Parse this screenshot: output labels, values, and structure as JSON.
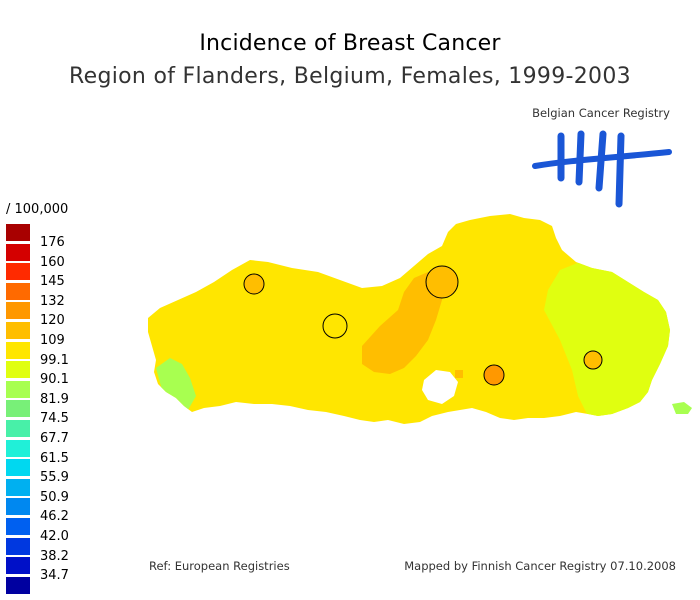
{
  "title": "Incidence of Breast Cancer",
  "subtitle": "Region of Flanders, Belgium, Females, 1999-2003",
  "logo": {
    "text": "Belgian Cancer Registry",
    "color": "#1a56d6"
  },
  "legend": {
    "unit": "/ 100,000",
    "items": [
      {
        "label": "176",
        "color": "#a80000"
      },
      {
        "label": "160",
        "color": "#d40000"
      },
      {
        "label": "145",
        "color": "#ff2a00"
      },
      {
        "label": "132",
        "color": "#ff6a00"
      },
      {
        "label": "120",
        "color": "#ff9800"
      },
      {
        "label": "109",
        "color": "#ffbe00"
      },
      {
        "label": "99.1",
        "color": "#ffe600"
      },
      {
        "label": "90.1",
        "color": "#e0ff10"
      },
      {
        "label": "81.9",
        "color": "#a8ff50"
      },
      {
        "label": "74.5",
        "color": "#78f078"
      },
      {
        "label": "67.7",
        "color": "#48f0a8"
      },
      {
        "label": "61.5",
        "color": "#20f0d8"
      },
      {
        "label": "55.9",
        "color": "#00d8f0"
      },
      {
        "label": "50.9",
        "color": "#00b0f0"
      },
      {
        "label": "46.2",
        "color": "#0088f0"
      },
      {
        "label": "42.0",
        "color": "#0060f0"
      },
      {
        "label": "38.2",
        "color": "#0038e0"
      },
      {
        "label": "34.7",
        "color": "#0010c8"
      },
      {
        "label": "",
        "color": "#0000a0"
      }
    ]
  },
  "map": {
    "base_color": "#ffe600",
    "east_color": "#e0ff10",
    "central_color": "#ffbe00",
    "patch_color": "#a8ff50",
    "city_markers": [
      {
        "name": "marker-west",
        "color": "#ffbe00"
      },
      {
        "name": "marker-central-west",
        "color": "#ffe600"
      },
      {
        "name": "marker-north",
        "color": "#ffbe00"
      },
      {
        "name": "marker-central-east",
        "color": "#ff9800"
      },
      {
        "name": "marker-east",
        "color": "#ffbe00"
      }
    ]
  },
  "footer": {
    "ref": "Ref: European Registries",
    "mapped_by": "Mapped by Finnish Cancer Registry 07.10.2008"
  }
}
